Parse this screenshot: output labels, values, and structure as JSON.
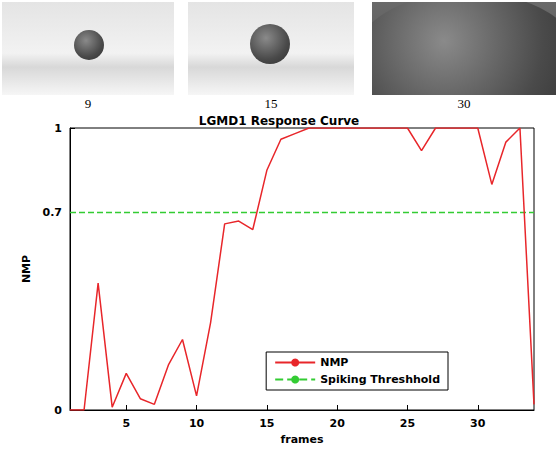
{
  "images": [
    {
      "caption": "9"
    },
    {
      "caption": "15"
    },
    {
      "caption": "30"
    }
  ],
  "chart_data": {
    "type": "line",
    "title": "LGMD1 Response Curve",
    "x_label": "frames",
    "y_label": "NMP",
    "x": [
      1,
      2,
      3,
      4,
      5,
      6,
      7,
      8,
      9,
      10,
      11,
      12,
      13,
      14,
      15,
      16,
      17,
      18,
      19,
      20,
      21,
      22,
      23,
      24,
      25,
      26,
      27,
      28,
      29,
      30,
      31,
      32,
      33,
      34
    ],
    "series": [
      {
        "name": "NMP",
        "color": "#e8262a",
        "line_style": "solid",
        "values": [
          0,
          0,
          0.45,
          0.01,
          0.13,
          0.04,
          0.02,
          0.16,
          0.25,
          0.05,
          0.31,
          0.66,
          0.67,
          0.64,
          0.85,
          0.96,
          0.98,
          1,
          1,
          1,
          1,
          1,
          1,
          1,
          1,
          0.92,
          1,
          1,
          1,
          1,
          0.8,
          0.95,
          1,
          0.02
        ]
      }
    ],
    "threshold": {
      "name": "Spiking Threshhold",
      "value": 0.7,
      "color": "#33cc33",
      "line_style": "dashed"
    },
    "xlim": [
      1,
      34
    ],
    "xticks": [
      5,
      10,
      15,
      20,
      25,
      30
    ],
    "ylim": [
      0,
      1
    ],
    "yticks": [
      0,
      0.7,
      1
    ],
    "grid": false,
    "legend": "lower right"
  }
}
